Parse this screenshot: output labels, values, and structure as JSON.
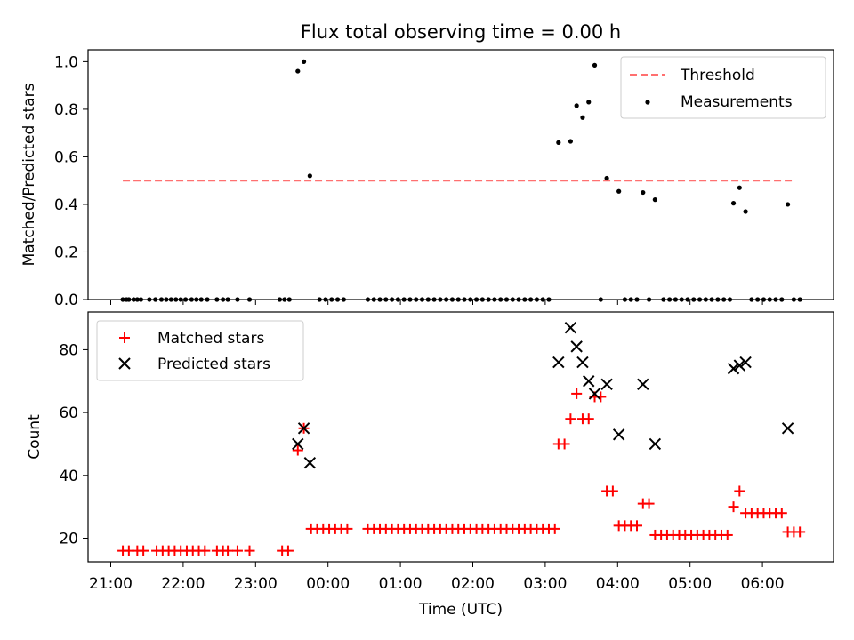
{
  "title": "Flux total observing time = 0.00 h",
  "chart_data": [
    {
      "type": "scatter",
      "title": "Flux total observing time = 0.00 h",
      "xlabel": "",
      "ylabel": "Matched/Predicted stars",
      "ylim": [
        0,
        1.05
      ],
      "yticks": [
        "0.0",
        "0.2",
        "0.4",
        "0.6",
        "0.8",
        "1.0"
      ],
      "legend_position": "top-right",
      "threshold": {
        "name": "Threshold",
        "value": 0.5,
        "x_start": "21:10",
        "x_end": "06:26",
        "color": "#ff7070"
      },
      "series": [
        {
          "name": "Measurements",
          "color": "#000000",
          "points": [
            [
              "21:10",
              0
            ],
            [
              "21:13",
              0
            ],
            [
              "21:15",
              0
            ],
            [
              "21:19",
              0
            ],
            [
              "21:22",
              0
            ],
            [
              "21:25",
              0
            ],
            [
              "21:32",
              0
            ],
            [
              "21:37",
              0
            ],
            [
              "21:42",
              0
            ],
            [
              "21:46",
              0
            ],
            [
              "21:50",
              0
            ],
            [
              "21:54",
              0
            ],
            [
              "21:58",
              0
            ],
            [
              "22:02",
              0
            ],
            [
              "22:07",
              0
            ],
            [
              "22:11",
              0
            ],
            [
              "22:15",
              0
            ],
            [
              "22:20",
              0
            ],
            [
              "22:28",
              0
            ],
            [
              "22:33",
              0
            ],
            [
              "22:37",
              0
            ],
            [
              "22:45",
              0
            ],
            [
              "22:55",
              0
            ],
            [
              "23:20",
              0
            ],
            [
              "23:24",
              0
            ],
            [
              "23:28",
              0
            ],
            [
              "23:35",
              0.96
            ],
            [
              "23:40",
              1.0
            ],
            [
              "23:45",
              0.52
            ],
            [
              "23:53",
              0
            ],
            [
              "23:58",
              0
            ],
            [
              "00:03",
              0
            ],
            [
              "00:08",
              0
            ],
            [
              "00:13",
              0
            ],
            [
              "00:33",
              0
            ],
            [
              "00:38",
              0
            ],
            [
              "00:43",
              0
            ],
            [
              "00:48",
              0
            ],
            [
              "00:53",
              0
            ],
            [
              "00:58",
              0
            ],
            [
              "01:03",
              0
            ],
            [
              "01:08",
              0
            ],
            [
              "01:13",
              0
            ],
            [
              "01:18",
              0
            ],
            [
              "01:23",
              0
            ],
            [
              "01:28",
              0
            ],
            [
              "01:33",
              0
            ],
            [
              "01:38",
              0
            ],
            [
              "01:43",
              0
            ],
            [
              "01:48",
              0
            ],
            [
              "01:53",
              0
            ],
            [
              "01:58",
              0
            ],
            [
              "02:03",
              0
            ],
            [
              "02:08",
              0
            ],
            [
              "02:13",
              0
            ],
            [
              "02:18",
              0
            ],
            [
              "02:23",
              0
            ],
            [
              "02:28",
              0
            ],
            [
              "02:33",
              0
            ],
            [
              "02:38",
              0
            ],
            [
              "02:43",
              0
            ],
            [
              "02:48",
              0
            ],
            [
              "02:53",
              0
            ],
            [
              "02:58",
              0
            ],
            [
              "03:03",
              0
            ],
            [
              "03:11",
              0.66
            ],
            [
              "03:21",
              0.665
            ],
            [
              "03:26",
              0.815
            ],
            [
              "03:31",
              0.765
            ],
            [
              "03:36",
              0.83
            ],
            [
              "03:41",
              0.985
            ],
            [
              "03:46",
              0
            ],
            [
              "03:51",
              0.51
            ],
            [
              "04:01",
              0.455
            ],
            [
              "04:06",
              0
            ],
            [
              "04:11",
              0
            ],
            [
              "04:16",
              0
            ],
            [
              "04:21",
              0.45
            ],
            [
              "04:26",
              0
            ],
            [
              "04:31",
              0.42
            ],
            [
              "04:38",
              0
            ],
            [
              "04:43",
              0
            ],
            [
              "04:48",
              0
            ],
            [
              "04:53",
              0
            ],
            [
              "04:58",
              0
            ],
            [
              "05:03",
              0
            ],
            [
              "05:08",
              0
            ],
            [
              "05:13",
              0
            ],
            [
              "05:18",
              0
            ],
            [
              "05:23",
              0
            ],
            [
              "05:28",
              0
            ],
            [
              "05:33",
              0
            ],
            [
              "05:36",
              0.405
            ],
            [
              "05:41",
              0.47
            ],
            [
              "05:46",
              0.37
            ],
            [
              "05:51",
              0
            ],
            [
              "05:56",
              0
            ],
            [
              "06:01",
              0
            ],
            [
              "06:06",
              0
            ],
            [
              "06:11",
              0
            ],
            [
              "06:16",
              0
            ],
            [
              "06:21",
              0.4
            ],
            [
              "06:26",
              0
            ],
            [
              "06:31",
              0
            ]
          ]
        }
      ]
    },
    {
      "type": "scatter",
      "title": "",
      "xlabel": "Time (UTC)",
      "ylabel": "Count",
      "ylim": [
        12.5,
        92
      ],
      "yticks": [
        "20",
        "40",
        "60",
        "80"
      ],
      "x_ticks": [
        "21:00",
        "22:00",
        "23:00",
        "00:00",
        "01:00",
        "02:00",
        "03:00",
        "04:00",
        "05:00",
        "06:00"
      ],
      "legend_position": "top-left",
      "series": [
        {
          "name": "Matched stars",
          "color": "#ff0000",
          "marker": "plus",
          "points": [
            [
              "21:10",
              16
            ],
            [
              "21:15",
              16
            ],
            [
              "21:22",
              16
            ],
            [
              "21:27",
              16
            ],
            [
              "21:38",
              16
            ],
            [
              "21:43",
              16
            ],
            [
              "21:48",
              16
            ],
            [
              "21:53",
              16
            ],
            [
              "21:58",
              16
            ],
            [
              "22:03",
              16
            ],
            [
              "22:08",
              16
            ],
            [
              "22:13",
              16
            ],
            [
              "22:18",
              16
            ],
            [
              "22:28",
              16
            ],
            [
              "22:33",
              16
            ],
            [
              "22:37",
              16
            ],
            [
              "22:45",
              16
            ],
            [
              "22:55",
              16
            ],
            [
              "23:22",
              16
            ],
            [
              "23:27",
              16
            ],
            [
              "23:35",
              48
            ],
            [
              "23:40",
              55
            ],
            [
              "23:46",
              23
            ],
            [
              "23:51",
              23
            ],
            [
              "23:56",
              23
            ],
            [
              "00:01",
              23
            ],
            [
              "00:06",
              23
            ],
            [
              "00:11",
              23
            ],
            [
              "00:16",
              23
            ],
            [
              "00:33",
              23
            ],
            [
              "00:38",
              23
            ],
            [
              "00:43",
              23
            ],
            [
              "00:48",
              23
            ],
            [
              "00:53",
              23
            ],
            [
              "00:58",
              23
            ],
            [
              "01:03",
              23
            ],
            [
              "01:08",
              23
            ],
            [
              "01:13",
              23
            ],
            [
              "01:18",
              23
            ],
            [
              "01:23",
              23
            ],
            [
              "01:28",
              23
            ],
            [
              "01:33",
              23
            ],
            [
              "01:38",
              23
            ],
            [
              "01:43",
              23
            ],
            [
              "01:48",
              23
            ],
            [
              "01:53",
              23
            ],
            [
              "01:58",
              23
            ],
            [
              "02:03",
              23
            ],
            [
              "02:08",
              23
            ],
            [
              "02:13",
              23
            ],
            [
              "02:18",
              23
            ],
            [
              "02:23",
              23
            ],
            [
              "02:28",
              23
            ],
            [
              "02:33",
              23
            ],
            [
              "02:38",
              23
            ],
            [
              "02:43",
              23
            ],
            [
              "02:48",
              23
            ],
            [
              "02:53",
              23
            ],
            [
              "02:58",
              23
            ],
            [
              "03:03",
              23
            ],
            [
              "03:08",
              23
            ],
            [
              "03:11",
              50
            ],
            [
              "03:16",
              50
            ],
            [
              "03:21",
              58
            ],
            [
              "03:26",
              66
            ],
            [
              "03:31",
              58
            ],
            [
              "03:36",
              58
            ],
            [
              "03:41",
              65
            ],
            [
              "03:46",
              65
            ],
            [
              "03:51",
              35
            ],
            [
              "03:56",
              35
            ],
            [
              "04:01",
              24
            ],
            [
              "04:06",
              24
            ],
            [
              "04:11",
              24
            ],
            [
              "04:16",
              24
            ],
            [
              "04:21",
              31
            ],
            [
              "04:26",
              31
            ],
            [
              "04:31",
              21
            ],
            [
              "04:36",
              21
            ],
            [
              "04:41",
              21
            ],
            [
              "04:46",
              21
            ],
            [
              "04:51",
              21
            ],
            [
              "04:56",
              21
            ],
            [
              "05:01",
              21
            ],
            [
              "05:06",
              21
            ],
            [
              "05:11",
              21
            ],
            [
              "05:16",
              21
            ],
            [
              "05:21",
              21
            ],
            [
              "05:26",
              21
            ],
            [
              "05:31",
              21
            ],
            [
              "05:36",
              30
            ],
            [
              "05:41",
              35
            ],
            [
              "05:46",
              28
            ],
            [
              "05:51",
              28
            ],
            [
              "05:56",
              28
            ],
            [
              "06:01",
              28
            ],
            [
              "06:06",
              28
            ],
            [
              "06:11",
              28
            ],
            [
              "06:16",
              28
            ],
            [
              "06:21",
              22
            ],
            [
              "06:26",
              22
            ],
            [
              "06:31",
              22
            ]
          ]
        },
        {
          "name": "Predicted stars",
          "color": "#000000",
          "marker": "x",
          "points": [
            [
              "23:35",
              50
            ],
            [
              "23:40",
              55
            ],
            [
              "23:45",
              44
            ],
            [
              "03:11",
              76
            ],
            [
              "03:21",
              87
            ],
            [
              "03:26",
              81
            ],
            [
              "03:31",
              76
            ],
            [
              "03:36",
              70
            ],
            [
              "03:41",
              66
            ],
            [
              "03:51",
              69
            ],
            [
              "04:01",
              53
            ],
            [
              "04:21",
              69
            ],
            [
              "04:31",
              50
            ],
            [
              "05:36",
              74
            ],
            [
              "05:41",
              75
            ],
            [
              "05:46",
              76
            ],
            [
              "06:21",
              55
            ]
          ]
        }
      ]
    }
  ]
}
